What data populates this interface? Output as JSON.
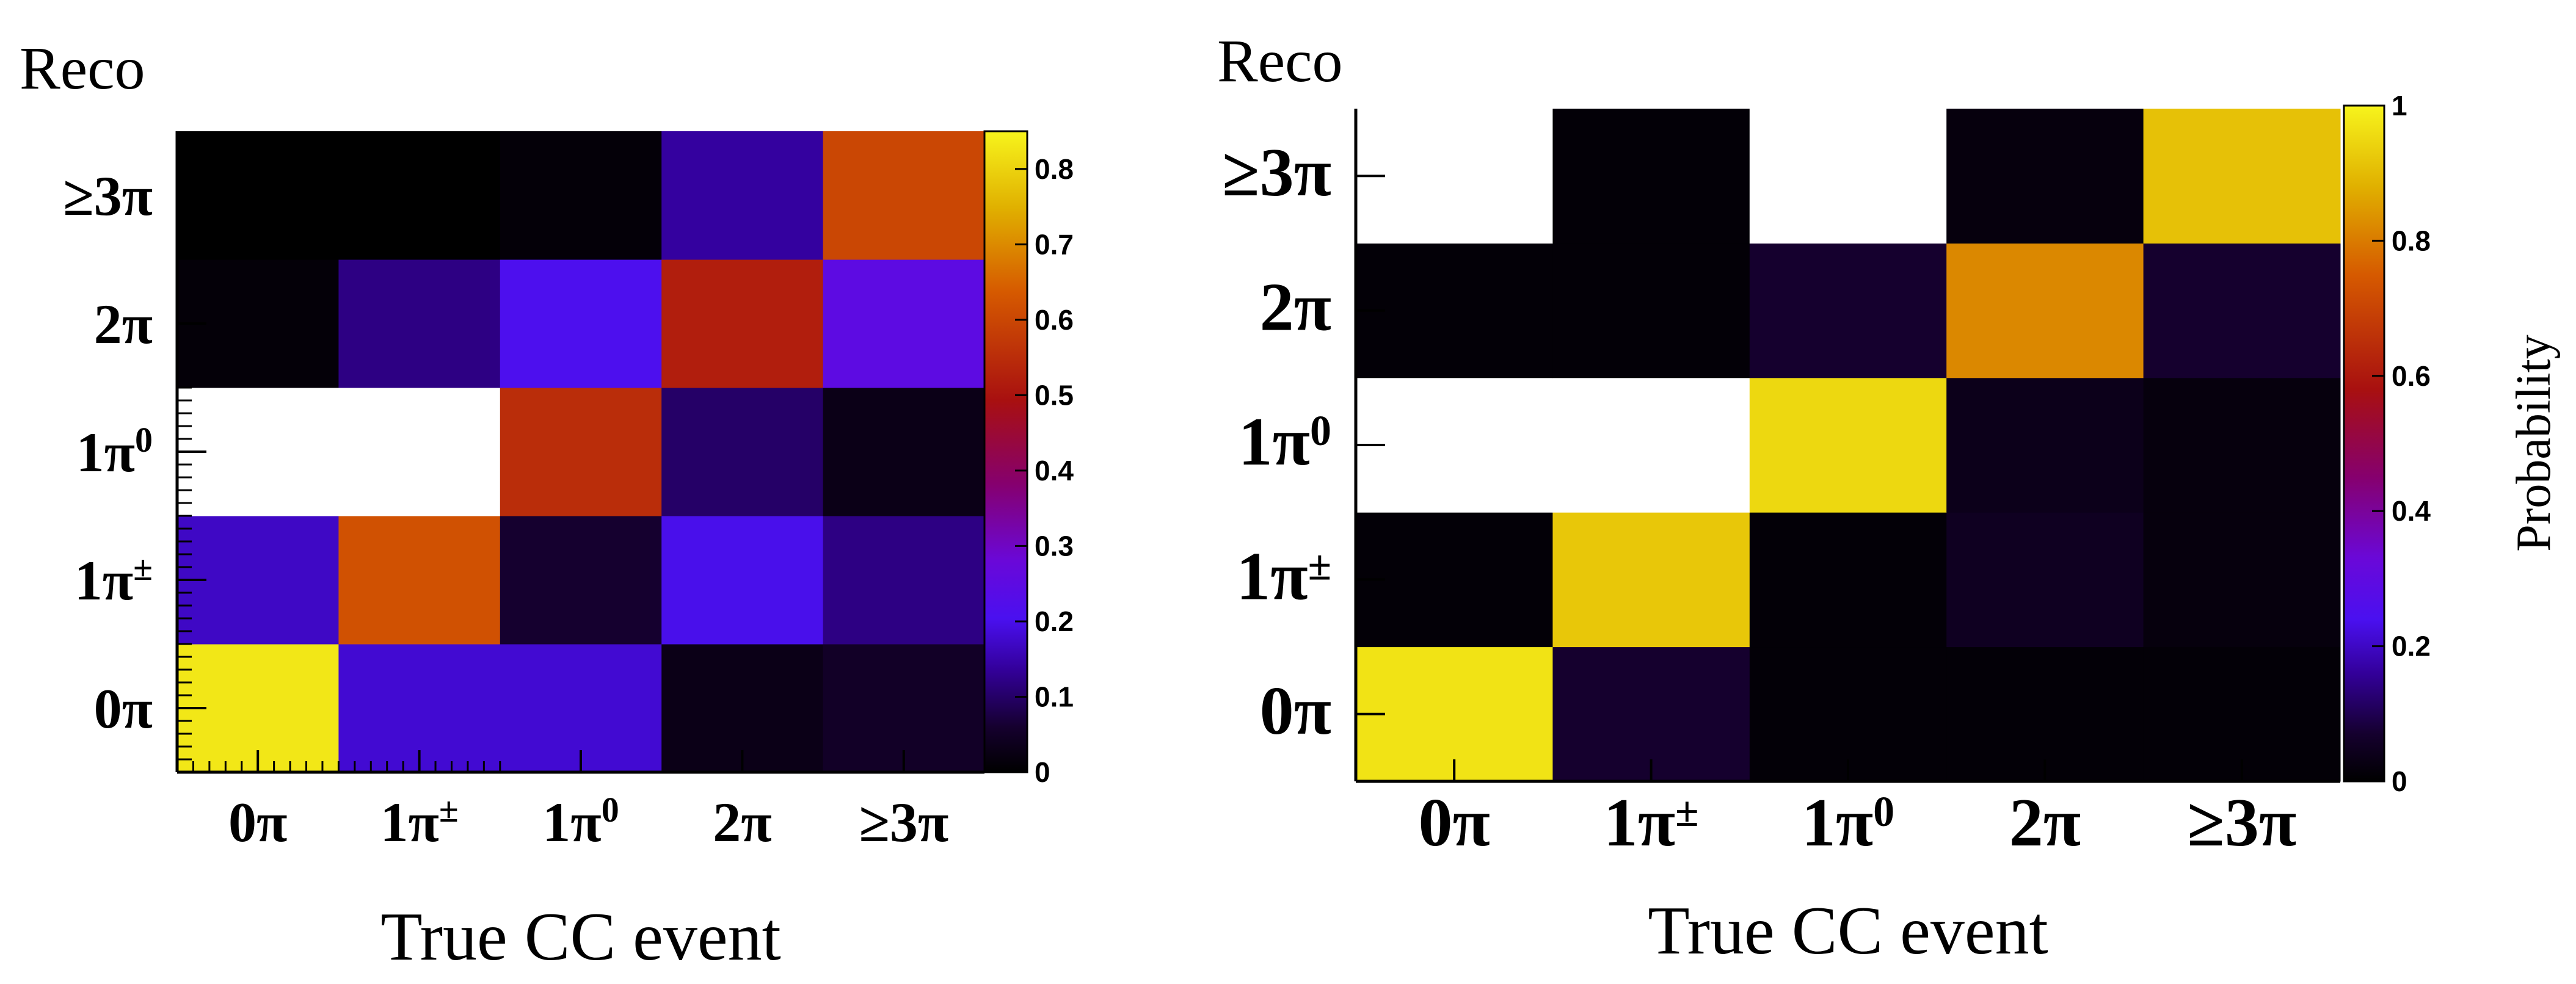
{
  "chart_data": [
    {
      "type": "heatmap",
      "title": "",
      "ylabel": "Reco",
      "xlabel": "True CC event",
      "x_categories": [
        {
          "base": "0π",
          "sup": ""
        },
        {
          "base": "1π",
          "sup": "±"
        },
        {
          "base": "1π",
          "sup": "0"
        },
        {
          "base": "2π",
          "sup": ""
        },
        {
          "base": "≥3π",
          "sup": ""
        }
      ],
      "y_categories": [
        {
          "base": "0π",
          "sup": ""
        },
        {
          "base": "1π",
          "sup": "±"
        },
        {
          "base": "1π",
          "sup": "0"
        },
        {
          "base": "2π",
          "sup": ""
        },
        {
          "base": "≥3π",
          "sup": ""
        }
      ],
      "rows_bottom_to_top": [
        [
          0.83,
          0.18,
          0.18,
          0.03,
          0.05
        ],
        [
          0.17,
          0.62,
          0.06,
          0.2,
          0.12
        ],
        [
          null,
          null,
          0.55,
          0.1,
          0.03
        ],
        [
          0.01,
          0.12,
          0.21,
          0.52,
          0.25
        ],
        [
          0.0,
          0.0,
          0.01,
          0.14,
          0.6
        ]
      ],
      "zlim": [
        0,
        0.85
      ],
      "z_ticks": [
        "0",
        "0.1",
        "0.2",
        "0.3",
        "0.4",
        "0.5",
        "0.6",
        "0.7",
        "0.8"
      ],
      "z_tick_values": [
        0,
        0.1,
        0.2,
        0.3,
        0.4,
        0.5,
        0.6,
        0.7,
        0.8
      ],
      "zlabel": ""
    },
    {
      "type": "heatmap",
      "title": "",
      "ylabel": "Reco",
      "xlabel": "True CC event",
      "x_categories": [
        {
          "base": "0π",
          "sup": ""
        },
        {
          "base": "1π",
          "sup": "±"
        },
        {
          "base": "1π",
          "sup": "0"
        },
        {
          "base": "2π",
          "sup": ""
        },
        {
          "base": "≥3π",
          "sup": ""
        }
      ],
      "y_categories": [
        {
          "base": "0π",
          "sup": ""
        },
        {
          "base": "1π",
          "sup": "±"
        },
        {
          "base": "1π",
          "sup": "0"
        },
        {
          "base": "2π",
          "sup": ""
        },
        {
          "base": "≥3π",
          "sup": ""
        }
      ],
      "rows_bottom_to_top": [
        [
          0.97,
          0.07,
          0.01,
          0.01,
          0.01
        ],
        [
          0.01,
          0.92,
          0.01,
          0.05,
          0.02
        ],
        [
          null,
          null,
          0.95,
          0.04,
          0.02
        ],
        [
          0.01,
          0.01,
          0.07,
          0.82,
          0.07
        ],
        [
          null,
          0.01,
          null,
          0.02,
          0.91
        ]
      ],
      "zlim": [
        0,
        1
      ],
      "z_ticks": [
        "0",
        "0.2",
        "0.4",
        "0.6",
        "0.8",
        "1"
      ],
      "z_tick_values": [
        0,
        0.2,
        0.4,
        0.6,
        0.8,
        1
      ],
      "zlabel": "Probability"
    }
  ]
}
